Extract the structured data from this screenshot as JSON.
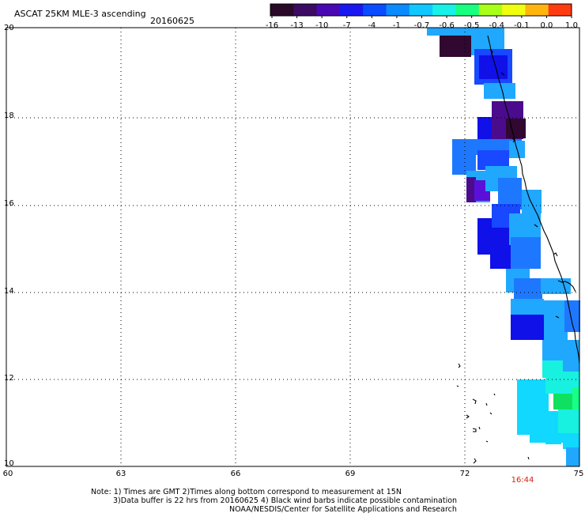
{
  "title": "ASCAT 25KM MLE-3 ascending",
  "date": "20160625",
  "colorbar": {
    "ticks": [
      "-16",
      "-13",
      "-10",
      "-7",
      "-4",
      "-1",
      "-0.7",
      "-0.6",
      "-0.5",
      "-0.4",
      "-0.1",
      "0.0",
      "1.0"
    ],
    "colors": [
      "#2a0a28",
      "#3d0a64",
      "#4a08b4",
      "#1a18f0",
      "#0a4cff",
      "#0a8cff",
      "#10c8ff",
      "#18f0e8",
      "#18ff80",
      "#a8ff18",
      "#f0ff10",
      "#ffb410",
      "#ff3c10"
    ]
  },
  "y_axis_ticks": [
    "20",
    "18",
    "16",
    "14",
    "12",
    "10"
  ],
  "x_axis_ticks": [
    "60",
    "63",
    "66",
    "69",
    "72",
    "75"
  ],
  "time_label": "16:44",
  "time_color": "#d82010",
  "notes": {
    "line1": "Note: 1) Times are GMT 2)Times along bottom correspond to measurement at 15N",
    "line2": "3)Data buffer is 22 hrs from 20160625 4) Black wind barbs indicate possible contamination",
    "line3": "NOAA/NESDIS/Center for Satellite Applications and Research"
  }
}
